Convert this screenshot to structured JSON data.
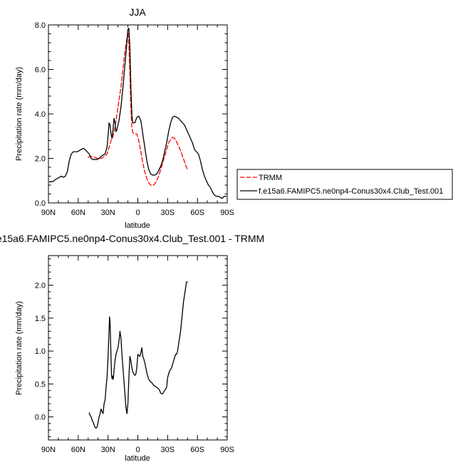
{
  "chart_data": [
    {
      "type": "line",
      "title": "JJA",
      "xlabel": "latitude",
      "ylabel": "Precipitation rate (mm/day)",
      "xlim": [
        90,
        -90
      ],
      "ylim": [
        0,
        8
      ],
      "xticks": [
        90,
        60,
        30,
        0,
        -30,
        -60,
        -90
      ],
      "xticklabels": [
        "90N",
        "60N",
        "30N",
        "0",
        "30S",
        "60S",
        "90S"
      ],
      "yticks": [
        0,
        2,
        4,
        6,
        8
      ],
      "yticklabels": [
        "0.0",
        "2.0",
        "4.0",
        "6.0",
        "8.0"
      ],
      "legend_position": "outside-right",
      "series": [
        {
          "name": "TRMM",
          "color": "#ff0000",
          "style": "dashed",
          "x": [
            50,
            47,
            45,
            43,
            41,
            39,
            37,
            35,
            33,
            31,
            29,
            27,
            25,
            23,
            21,
            19,
            17,
            15,
            13,
            11,
            10,
            9,
            8,
            7,
            6,
            5,
            3,
            1,
            -1,
            -3,
            -5,
            -7,
            -9,
            -11,
            -13,
            -15,
            -17,
            -19,
            -21,
            -23,
            -25,
            -27,
            -29,
            -31,
            -33,
            -35,
            -37,
            -39,
            -41,
            -43,
            -45,
            -47,
            -49,
            -50
          ],
          "y": [
            2.05,
            2.1,
            2.05,
            2.05,
            2.0,
            2.0,
            2.0,
            2.05,
            2.1,
            2.2,
            2.5,
            2.8,
            3.0,
            3.4,
            4.0,
            4.6,
            5.2,
            6.0,
            6.8,
            7.4,
            7.7,
            7.1,
            5.8,
            4.3,
            3.4,
            3.15,
            3.1,
            3.1,
            2.8,
            2.3,
            1.8,
            1.4,
            1.1,
            0.9,
            0.8,
            0.78,
            0.85,
            1.0,
            1.2,
            1.5,
            1.8,
            2.1,
            2.4,
            2.7,
            2.85,
            2.95,
            2.9,
            2.75,
            2.55,
            2.35,
            2.1,
            1.85,
            1.6,
            1.5
          ]
        },
        {
          "name": "f.e15a6.FAMIPC5.ne0np4-Conus30x4.Club_Test.001",
          "color": "#000000",
          "style": "solid",
          "x": [
            89,
            87,
            85,
            83,
            81,
            79,
            77,
            75,
            73,
            71,
            69,
            67,
            65,
            63,
            61,
            59,
            57,
            55,
            53,
            51,
            49,
            47,
            45,
            43,
            41,
            39,
            37,
            35,
            33,
            31,
            30,
            29,
            28,
            27,
            26,
            25,
            24,
            23,
            22,
            21,
            19,
            17,
            15,
            13,
            11,
            10,
            9,
            8,
            7,
            6,
            5,
            3,
            1,
            -1,
            -3,
            -5,
            -7,
            -9,
            -11,
            -13,
            -15,
            -17,
            -19,
            -21,
            -23,
            -25,
            -27,
            -29,
            -31,
            -33,
            -35,
            -37,
            -39,
            -41,
            -43,
            -45,
            -47,
            -49,
            -51,
            -53,
            -55,
            -57,
            -59,
            -61,
            -63,
            -65,
            -67,
            -69,
            -71,
            -73,
            -75,
            -77,
            -79,
            -81,
            -83,
            -85,
            -87,
            -89
          ],
          "y": [
            0.95,
            0.95,
            0.97,
            1.05,
            1.1,
            1.15,
            1.2,
            1.15,
            1.2,
            1.4,
            1.9,
            2.2,
            2.3,
            2.3,
            2.3,
            2.35,
            2.4,
            2.45,
            2.4,
            2.3,
            2.2,
            2.0,
            1.95,
            1.95,
            1.95,
            2.0,
            2.1,
            2.15,
            2.2,
            2.5,
            3.0,
            3.6,
            3.5,
            3.1,
            2.9,
            3.3,
            3.8,
            3.6,
            3.2,
            3.3,
            3.7,
            4.3,
            5.2,
            6.2,
            7.2,
            7.8,
            7.85,
            7.0,
            5.2,
            3.9,
            3.6,
            3.6,
            3.85,
            3.9,
            3.7,
            3.1,
            2.5,
            1.9,
            1.5,
            1.3,
            1.25,
            1.25,
            1.3,
            1.45,
            1.65,
            1.9,
            2.3,
            2.7,
            3.2,
            3.6,
            3.85,
            3.9,
            3.85,
            3.8,
            3.7,
            3.6,
            3.5,
            3.3,
            3.1,
            2.9,
            2.7,
            2.4,
            2.3,
            2.2,
            1.9,
            1.5,
            1.2,
            1.0,
            0.8,
            0.7,
            0.5,
            0.35,
            0.3,
            0.3,
            0.25,
            0.2,
            0.3,
            0.3
          ]
        }
      ]
    },
    {
      "type": "line",
      "title": "e15a6.FAMIPC5.ne0np4-Conus30x4.Club_Test.001 - TRMM",
      "xlabel": "latitude",
      "ylabel": "Precipitation rate (mm/day)",
      "xlim": [
        90,
        -90
      ],
      "ylim": [
        -0.35,
        2.45
      ],
      "xticks": [
        90,
        60,
        30,
        0,
        -30,
        -60,
        -90
      ],
      "xticklabels": [
        "90N",
        "60N",
        "30N",
        "0",
        "30S",
        "60S",
        "90S"
      ],
      "yticks": [
        0,
        0.5,
        1,
        1.5,
        2
      ],
      "yticklabels": [
        "0.0",
        "0.5",
        "1.0",
        "1.5",
        "2.0"
      ],
      "series": [
        {
          "color": "#000000",
          "style": "solid",
          "x": [
            49,
            48,
            47,
            46,
            45,
            44,
            43,
            42,
            41,
            40,
            39,
            38,
            37,
            36,
            35,
            34,
            33,
            32,
            31,
            30,
            29,
            28.5,
            28,
            27.5,
            27,
            26.5,
            26,
            25.5,
            25,
            24.5,
            24,
            23,
            22,
            21,
            20,
            19,
            18,
            17,
            16,
            15,
            14,
            13,
            12,
            11,
            10,
            9,
            8,
            7,
            6,
            5,
            4,
            3,
            2,
            1,
            0,
            -1,
            -2,
            -3,
            -4,
            -5,
            -6,
            -7,
            -8,
            -9,
            -10,
            -11,
            -12,
            -13,
            -14,
            -15,
            -16,
            -17,
            -18,
            -19,
            -20,
            -21,
            -22,
            -23,
            -24,
            -25,
            -26,
            -27,
            -28,
            -29,
            -30,
            -31,
            -32,
            -33,
            -34,
            -35,
            -36,
            -37,
            -38,
            -39,
            -40,
            -41,
            -42,
            -43,
            -44,
            -45,
            -46,
            -47,
            -48,
            -49,
            -50
          ],
          "y": [
            0.06,
            0.02,
            0.0,
            -0.05,
            -0.08,
            -0.12,
            -0.16,
            -0.17,
            -0.15,
            -0.08,
            0.0,
            0.05,
            0.12,
            0.08,
            0.05,
            0.2,
            0.25,
            0.45,
            0.6,
            0.9,
            1.3,
            1.52,
            1.45,
            1.2,
            0.9,
            0.65,
            0.58,
            0.62,
            0.57,
            0.6,
            0.7,
            0.85,
            0.95,
            1.0,
            1.05,
            1.15,
            1.3,
            1.2,
            0.95,
            0.75,
            0.55,
            0.35,
            0.15,
            0.05,
            0.2,
            0.6,
            0.92,
            0.85,
            0.75,
            0.68,
            0.65,
            0.63,
            0.65,
            0.75,
            0.95,
            0.93,
            0.92,
            0.97,
            1.05,
            0.92,
            0.88,
            0.82,
            0.75,
            0.67,
            0.62,
            0.57,
            0.55,
            0.53,
            0.52,
            0.5,
            0.48,
            0.47,
            0.46,
            0.45,
            0.44,
            0.42,
            0.4,
            0.36,
            0.35,
            0.35,
            0.38,
            0.4,
            0.42,
            0.45,
            0.6,
            0.65,
            0.7,
            0.72,
            0.75,
            0.8,
            0.85,
            0.9,
            0.95,
            0.95,
            1.0,
            1.1,
            1.2,
            1.3,
            1.45,
            1.6,
            1.75,
            1.85,
            1.95,
            2.05,
            2.05
          ]
        }
      ]
    }
  ]
}
